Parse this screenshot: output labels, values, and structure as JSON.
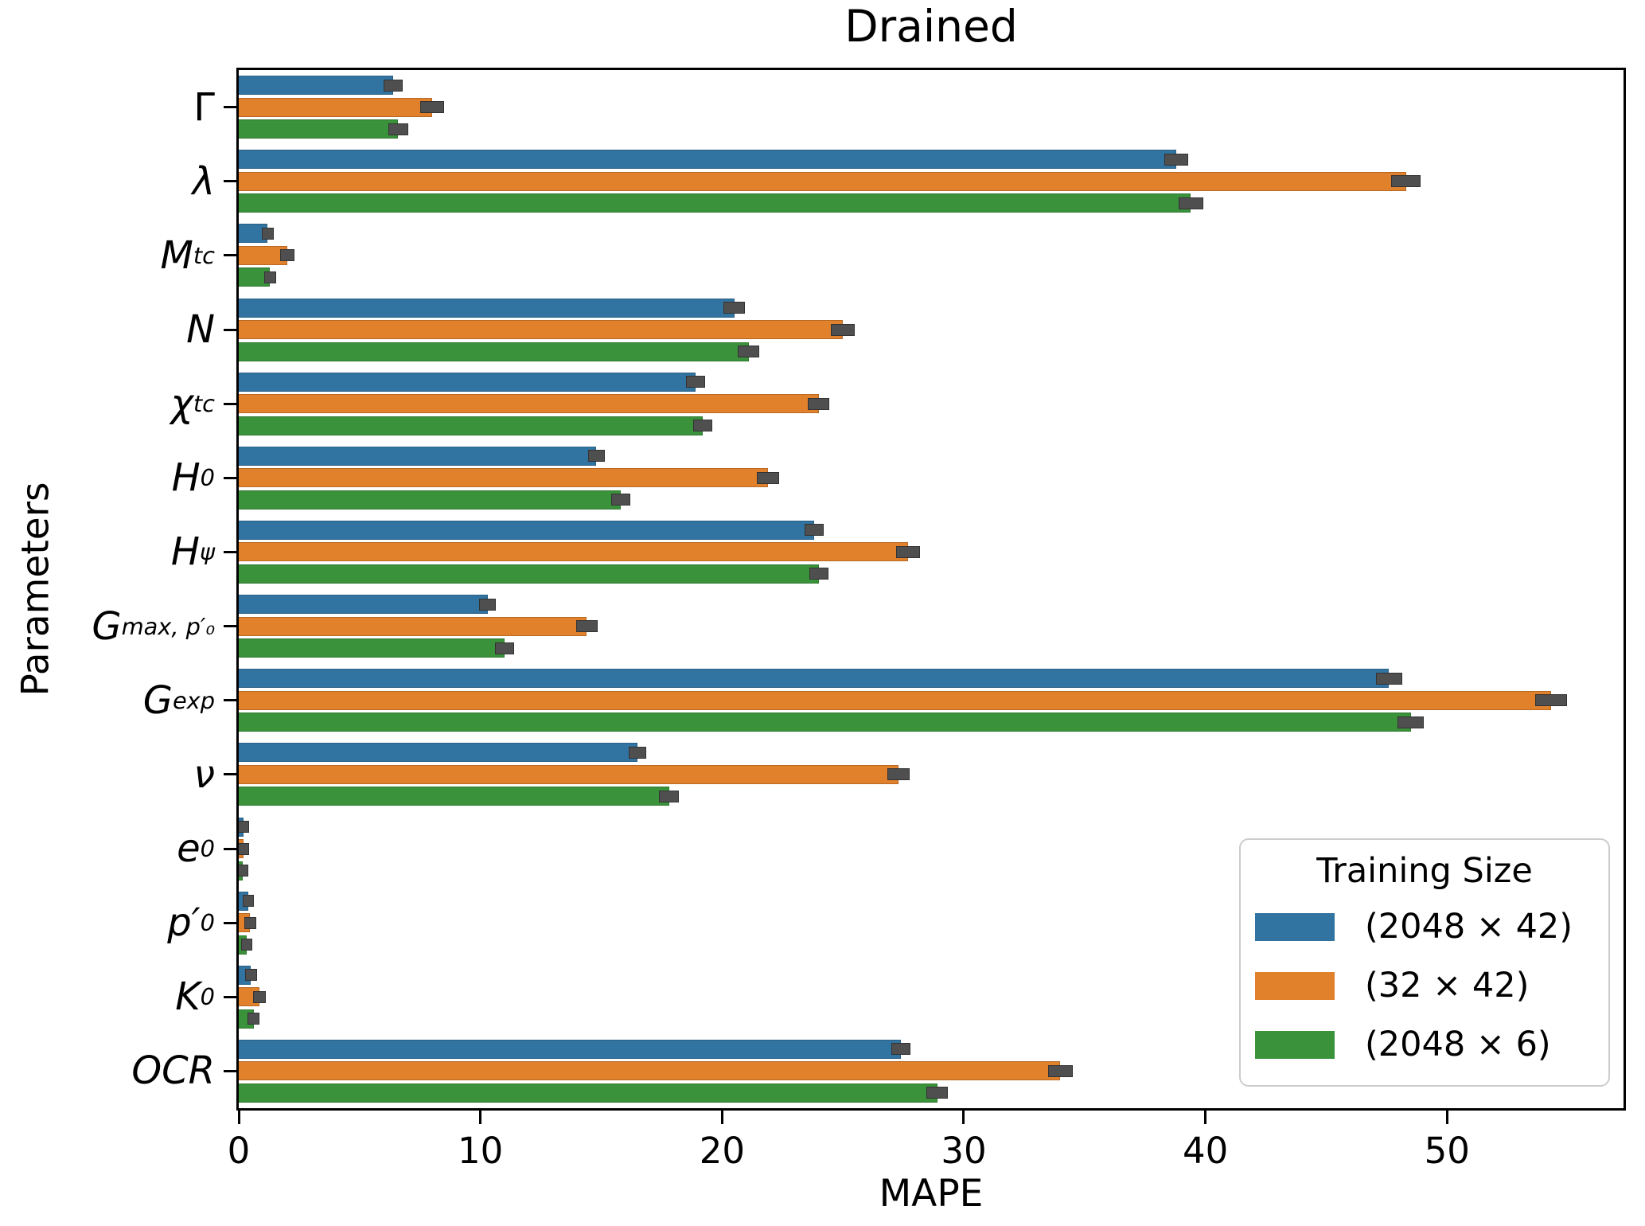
{
  "chart_data": {
    "type": "bar",
    "orientation": "horizontal",
    "title": "Drained",
    "xlabel": "MAPE",
    "ylabel": "Parameters",
    "xlim": [
      0,
      57.3
    ],
    "xticks": [
      0,
      10,
      20,
      30,
      40,
      50
    ],
    "grid": false,
    "legend_title": "Training Size",
    "legend_position": "lower-right",
    "error_bar_color": "#4f4f4f",
    "categories": [
      {
        "main": "Γ",
        "sub": "",
        "italic": false
      },
      {
        "main": "λ",
        "sub": "",
        "italic": true
      },
      {
        "main": "M",
        "sub": "tc",
        "italic": true
      },
      {
        "main": "N",
        "sub": "",
        "italic": true
      },
      {
        "main": "χ",
        "sub": "tc",
        "italic": true
      },
      {
        "main": "H",
        "sub": "0",
        "italic": true
      },
      {
        "main": "H",
        "sub": "ψ",
        "italic": true
      },
      {
        "main": "G",
        "sub": "max, p′₀",
        "italic": true
      },
      {
        "main": "G",
        "sub": "exp",
        "italic": true
      },
      {
        "main": "ν",
        "sub": "",
        "italic": true
      },
      {
        "main": "e",
        "sub": "0",
        "italic": true
      },
      {
        "main": "p′",
        "sub": "0",
        "italic": true
      },
      {
        "main": "K",
        "sub": "0",
        "italic": true
      },
      {
        "main": "OCR",
        "sub": "",
        "italic": true
      }
    ],
    "series": [
      {
        "name": "(2048 × 42)",
        "color": "#3274A1",
        "values": [
          6.4,
          38.8,
          1.2,
          20.5,
          18.9,
          14.8,
          23.8,
          10.3,
          47.6,
          16.5,
          0.2,
          0.38,
          0.5,
          27.4
        ],
        "errors": [
          0.4,
          0.5,
          0.25,
          0.45,
          0.4,
          0.35,
          0.4,
          0.35,
          0.55,
          0.35,
          0.15,
          0.2,
          0.25,
          0.4
        ]
      },
      {
        "name": "(32 × 42)",
        "color": "#E1812C",
        "values": [
          8.0,
          48.3,
          2.0,
          25.0,
          24.0,
          21.9,
          27.7,
          14.4,
          54.3,
          27.3,
          0.2,
          0.47,
          0.85,
          34.0
        ],
        "errors": [
          0.5,
          0.6,
          0.3,
          0.5,
          0.45,
          0.45,
          0.5,
          0.45,
          0.65,
          0.45,
          0.15,
          0.25,
          0.27,
          0.5
        ]
      },
      {
        "name": "(2048 × 6)",
        "color": "#3A923A",
        "values": [
          6.6,
          39.4,
          1.3,
          21.1,
          19.2,
          15.8,
          24.0,
          11.0,
          48.5,
          17.8,
          0.18,
          0.32,
          0.62,
          28.9
        ],
        "errors": [
          0.4,
          0.5,
          0.25,
          0.45,
          0.4,
          0.4,
          0.4,
          0.4,
          0.55,
          0.4,
          0.13,
          0.2,
          0.25,
          0.45
        ]
      }
    ]
  }
}
